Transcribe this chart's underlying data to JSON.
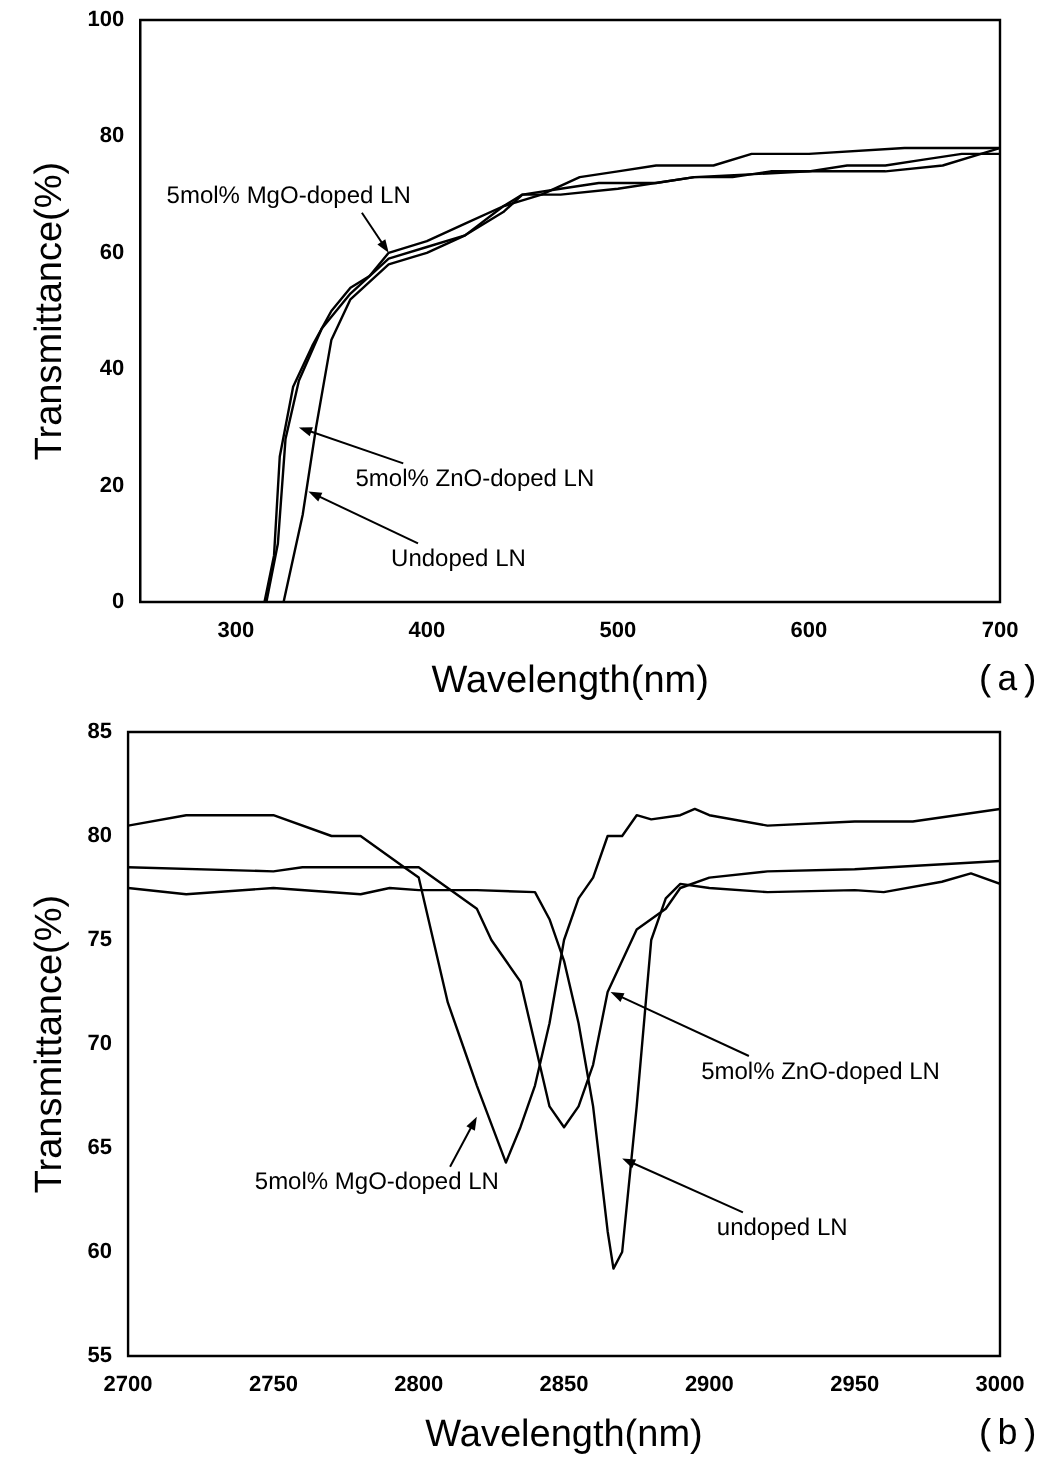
{
  "chart_data": [
    {
      "type": "line",
      "xlabel": "Wavelength(nm)",
      "ylabel": "Transmittance(%)",
      "xlim": [
        250,
        700
      ],
      "xticks": [
        300,
        400,
        500,
        600,
        700
      ],
      "ylim": [
        0,
        100
      ],
      "yticks": [
        0,
        20,
        40,
        60,
        80,
        100
      ],
      "grid": false,
      "legend": false,
      "marker": "none",
      "line_style": "solid",
      "series": [
        {
          "color": "#000000",
          "x": [
            315,
            320,
            323,
            330,
            340,
            350,
            360,
            370,
            380,
            400,
            420,
            440,
            450,
            470,
            490,
            500,
            520,
            540,
            560,
            580,
            600,
            620,
            640,
            660,
            680,
            700
          ],
          "values": [
            0,
            8,
            25,
            37,
            44,
            50,
            54,
            56,
            60,
            62,
            65,
            68,
            70,
            71,
            72,
            72,
            72,
            73,
            73,
            74,
            74,
            75,
            75,
            76,
            77,
            77
          ]
        },
        {
          "color": "#000000",
          "x": [
            316,
            322,
            326,
            333,
            345,
            360,
            380,
            400,
            420,
            440,
            460,
            480,
            500,
            520,
            550,
            570,
            600,
            650,
            700
          ],
          "values": [
            0,
            10,
            28,
            38,
            47,
            53,
            59,
            61,
            63,
            68,
            70,
            73,
            74,
            75,
            75,
            77,
            77,
            78,
            78
          ]
        },
        {
          "color": "#000000",
          "x": [
            325,
            335,
            342,
            350,
            360,
            380,
            400,
            420,
            440,
            450,
            470,
            500,
            540,
            600,
            640,
            670,
            700
          ],
          "values": [
            0,
            15,
            30,
            45,
            52,
            58,
            60,
            63,
            67,
            70,
            70,
            71,
            73,
            74,
            74,
            75,
            78
          ]
        }
      ],
      "annotations": [
        {
          "text": "5mol% MgO-doped LN",
          "x": 380,
          "y": 60
        },
        {
          "text": "5mol% ZnO-doped LN",
          "x": 333,
          "y": 30
        },
        {
          "text": "Undoped LN",
          "x": 338,
          "y": 19
        },
        "(a)"
      ]
    },
    {
      "type": "line",
      "xlabel": "Wavelength(nm)",
      "ylabel": "Transmittance(%)",
      "xlim": [
        2700,
        3000
      ],
      "xticks": [
        2700,
        2750,
        2800,
        2850,
        2900,
        2950,
        3000
      ],
      "ylim": [
        55,
        85
      ],
      "yticks": [
        55,
        60,
        65,
        70,
        75,
        80,
        85
      ],
      "grid": false,
      "legend": false,
      "marker": "none",
      "line_style": "solid",
      "series": [
        {
          "color": "#000000",
          "x": [
            2700,
            2720,
            2750,
            2770,
            2780,
            2795,
            2800,
            2805,
            2810,
            2815,
            2820,
            2830,
            2835,
            2840,
            2845,
            2850,
            2855,
            2860,
            2865,
            2870,
            2875,
            2880,
            2890,
            2895,
            2900,
            2920,
            2950,
            2970,
            3000
          ],
          "values": [
            80.5,
            81,
            81,
            80,
            80,
            78.5,
            78,
            75,
            72,
            70,
            68,
            64.3,
            66,
            68,
            71,
            75,
            77,
            78,
            80,
            80,
            81,
            80.8,
            81,
            81.3,
            81,
            80.5,
            80.7,
            80.7,
            81.3
          ]
        },
        {
          "color": "#000000",
          "x": [
            2700,
            2750,
            2760,
            2800,
            2810,
            2820,
            2825,
            2830,
            2835,
            2840,
            2845,
            2850,
            2855,
            2860,
            2865,
            2870,
            2875,
            2885,
            2890,
            2900,
            2920,
            2950,
            3000
          ],
          "values": [
            78.5,
            78.3,
            78.5,
            78.5,
            77.5,
            76.5,
            75,
            74,
            73,
            70,
            67,
            66,
            67,
            69,
            72.5,
            74,
            75.5,
            76.5,
            77.5,
            78,
            78.3,
            78.4,
            78.8
          ]
        },
        {
          "color": "#000000",
          "x": [
            2700,
            2720,
            2750,
            2780,
            2790,
            2800,
            2820,
            2840,
            2845,
            2850,
            2855,
            2860,
            2865,
            2867,
            2870,
            2875,
            2880,
            2885,
            2890,
            2900,
            2920,
            2950,
            2960,
            2980,
            2990,
            3000
          ],
          "values": [
            77.5,
            77.2,
            77.5,
            77.2,
            77.5,
            77.4,
            77.4,
            77.3,
            76,
            74,
            71,
            67,
            61,
            59.2,
            60,
            67,
            75,
            77,
            77.7,
            77.5,
            77.3,
            77.4,
            77.3,
            77.8,
            78.2,
            77.7
          ]
        }
      ],
      "annotations": [
        {
          "text": "5mol% MgO-doped LN",
          "x": 2820,
          "y": 66.5
        },
        {
          "text": "5mol% ZnO-doped LN",
          "x": 2866,
          "y": 72.5
        },
        {
          "text": "undoped LN",
          "x": 2870,
          "y": 64.5
        },
        "(b)"
      ]
    }
  ]
}
